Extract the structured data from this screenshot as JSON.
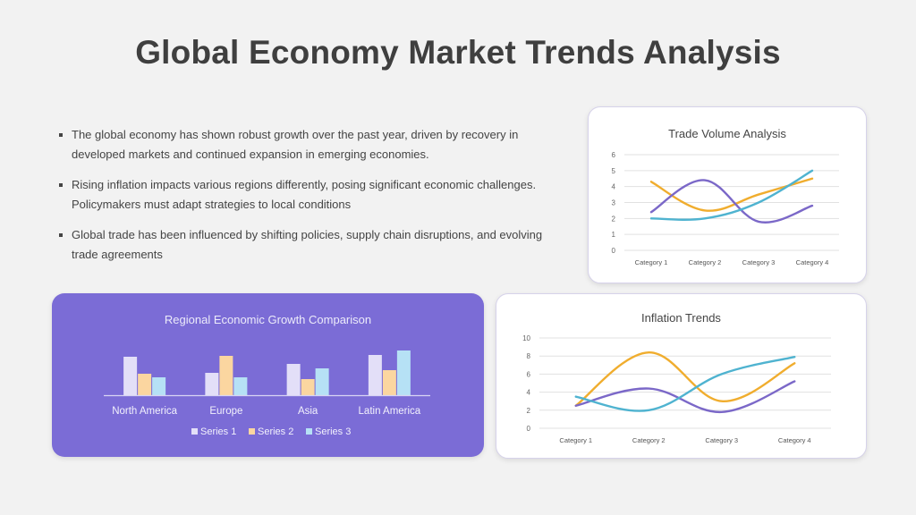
{
  "title": "Global Economy Market Trends Analysis",
  "bullets": [
    "The global economy has shown robust growth over the past year, driven by recovery in developed markets and continued expansion in emerging economies.",
    "Rising inflation impacts various regions differently, posing significant economic challenges. Policymakers must adapt strategies to local conditions",
    "Global trade has been influenced by shifting policies, supply chain disruptions, and evolving trade agreements"
  ],
  "colors": {
    "card_purple": "#7b6cd6",
    "line_orange": "#f0ad2e",
    "line_purple": "#7b68c8",
    "line_blue": "#4fb3d0",
    "bar_s1": "#e3dff8",
    "bar_s2": "#fbd6a0",
    "bar_s3": "#b6e1f5"
  },
  "chart_data": [
    {
      "id": "trade",
      "type": "line",
      "title": "Trade Volume Analysis",
      "categories": [
        "Category 1",
        "Category 2",
        "Category 3",
        "Category 4"
      ],
      "ylim": [
        0,
        6
      ],
      "yticks": [
        0,
        1,
        2,
        3,
        4,
        5,
        6
      ],
      "grid": true,
      "smooth": true,
      "series": [
        {
          "color": "#f0ad2e",
          "values": [
            4.3,
            2.5,
            3.5,
            4.5
          ]
        },
        {
          "color": "#7b68c8",
          "values": [
            2.4,
            4.4,
            1.8,
            2.8
          ]
        },
        {
          "color": "#4fb3d0",
          "values": [
            2.0,
            2.0,
            3.0,
            5.0
          ]
        }
      ]
    },
    {
      "id": "inflation",
      "type": "line",
      "title": "Inflation Trends",
      "categories": [
        "Category 1",
        "Category 2",
        "Category 3",
        "Category 4"
      ],
      "ylim": [
        0,
        10
      ],
      "yticks": [
        0,
        2,
        4,
        6,
        8,
        10
      ],
      "grid": true,
      "smooth": true,
      "series": [
        {
          "color": "#f0ad2e",
          "values": [
            2.5,
            8.4,
            3.0,
            7.2
          ]
        },
        {
          "color": "#7b68c8",
          "values": [
            2.5,
            4.4,
            1.8,
            5.2
          ]
        },
        {
          "color": "#4fb3d0",
          "values": [
            3.5,
            2.0,
            6.0,
            7.9
          ]
        }
      ]
    },
    {
      "id": "growth",
      "type": "bar",
      "title": "Regional Economic Growth Comparison",
      "categories": [
        "North America",
        "Europe",
        "Asia",
        "Latin America"
      ],
      "ylim": [
        0,
        5
      ],
      "grid": false,
      "legend": "bottom",
      "series": [
        {
          "name": "Series 1",
          "color": "#e3dff8",
          "values": [
            4.3,
            2.5,
            3.5,
            4.5
          ]
        },
        {
          "name": "Series 2",
          "color": "#fbd6a0",
          "values": [
            2.4,
            4.4,
            1.8,
            2.8
          ]
        },
        {
          "name": "Series 3",
          "color": "#b6e1f5",
          "values": [
            2.0,
            2.0,
            3.0,
            5.0
          ]
        }
      ]
    }
  ]
}
